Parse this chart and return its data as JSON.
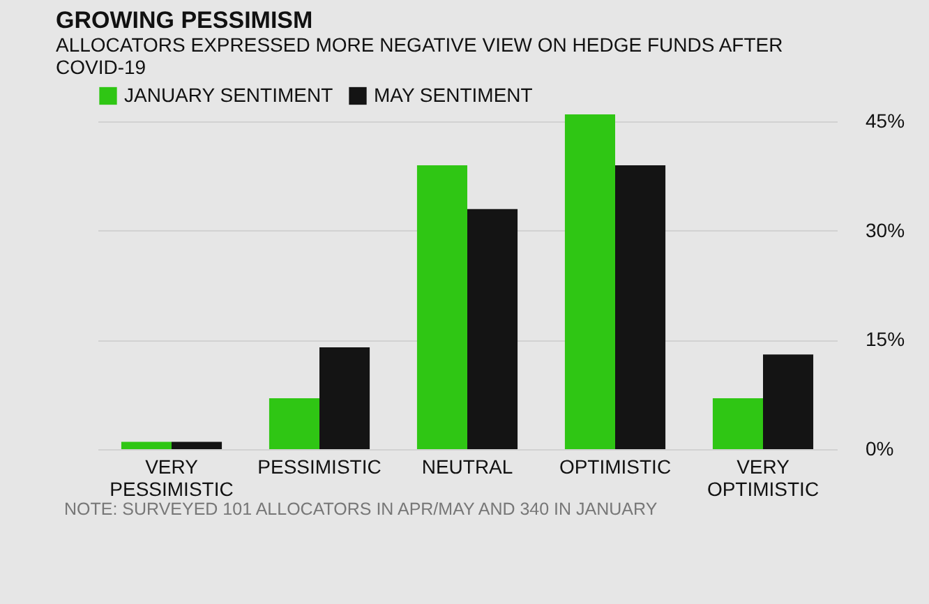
{
  "chart_data": {
    "type": "bar",
    "title": "GROWING PESSIMISM",
    "subtitle": "ALLOCATORS EXPRESSED MORE NEGATIVE VIEW ON HEDGE FUNDS AFTER COVID-19",
    "categories": [
      "VERY PESSIMISTIC",
      "PESSIMISTIC",
      "NEUTRAL",
      "OPTIMISTIC",
      "VERY OPTIMISTIC"
    ],
    "series": [
      {
        "name": "JANUARY SENTIMENT",
        "color": "#2fc614",
        "values": [
          1,
          7,
          39,
          46,
          7
        ]
      },
      {
        "name": "MAY SENTIMENT",
        "color": "#141414",
        "values": [
          1,
          14,
          33,
          39,
          13
        ]
      }
    ],
    "ylim": [
      0,
      46
    ],
    "yticks": [
      {
        "value": 0,
        "label": "0%"
      },
      {
        "value": 15,
        "label": "15%"
      },
      {
        "value": 30,
        "label": "30%"
      },
      {
        "value": 45,
        "label": "45%"
      }
    ],
    "grid": "y",
    "legend": "top",
    "annotations": [
      "NOTE: SURVEYED 101 ALLOCATORS IN APR/MAY AND 340 IN JANUARY"
    ]
  }
}
